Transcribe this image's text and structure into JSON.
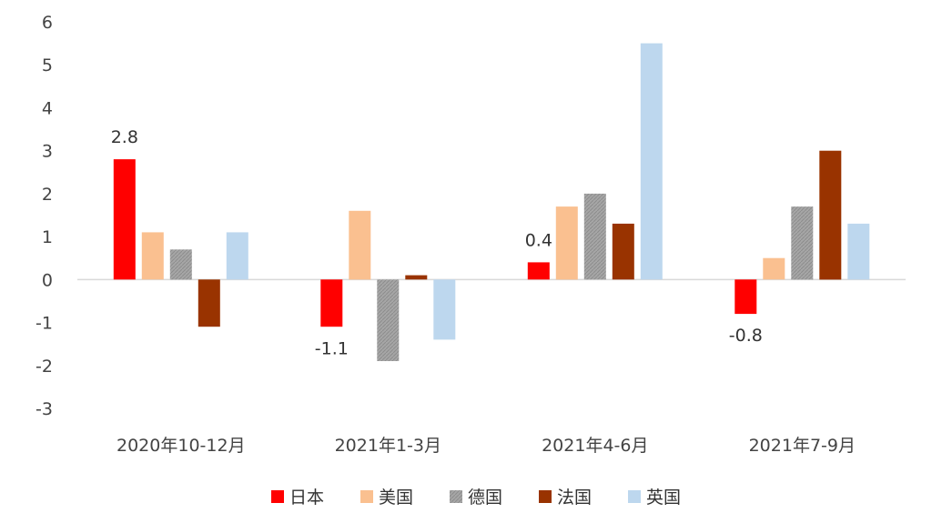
{
  "chart_data": {
    "type": "bar",
    "categories": [
      "2020年10-12月",
      "2021年1-3月",
      "2021年4-6月",
      "2021年7-9月"
    ],
    "ylim": [
      -3,
      6
    ],
    "yticks": [
      "6",
      "5",
      "4",
      "3",
      "2",
      "1",
      "0",
      "-1",
      "-2",
      "-3"
    ],
    "grid": false,
    "legend_position": "bottom",
    "series": [
      {
        "name": "日本",
        "color": "#ff0000",
        "values": [
          2.8,
          -1.1,
          0.4,
          -0.8
        ]
      },
      {
        "name": "美国",
        "color": "#fac090",
        "values": [
          1.1,
          1.6,
          1.7,
          0.5
        ]
      },
      {
        "name": "德国",
        "color": "#a6a6a6",
        "pattern": "hatched",
        "values": [
          0.7,
          -1.9,
          2.0,
          1.7
        ]
      },
      {
        "name": "法国",
        "color": "#993300",
        "values": [
          -1.1,
          0.1,
          1.3,
          3.0
        ]
      },
      {
        "name": "英国",
        "color": "#bdd7ee",
        "values": [
          1.1,
          -1.4,
          5.5,
          1.3
        ]
      }
    ],
    "data_labels": [
      "2.8",
      "-1.1",
      "0.4",
      "-0.8"
    ]
  }
}
